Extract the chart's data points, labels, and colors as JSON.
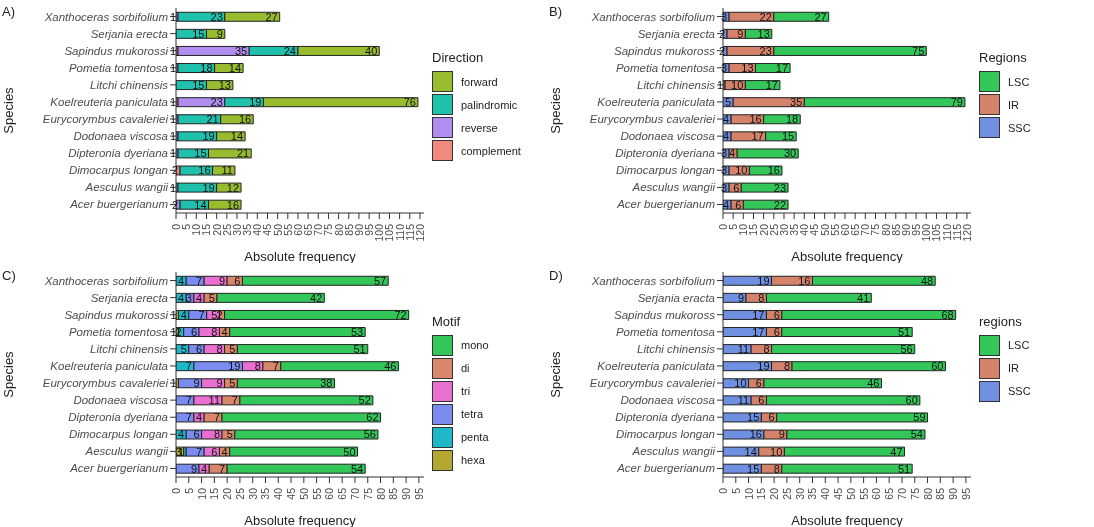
{
  "chart_data": [
    {
      "type": "bar",
      "title": "A)",
      "orientation": "horizontal",
      "stacked": true,
      "data_labels": true,
      "legend": "right",
      "legend_title": "Direction",
      "xlabel": "Absolute frequency",
      "ylabel": "Species",
      "xlim": [
        0,
        122
      ],
      "xticks": [
        0,
        5,
        10,
        15,
        20,
        25,
        30,
        35,
        40,
        45,
        50,
        55,
        60,
        65,
        70,
        75,
        80,
        85,
        90,
        95,
        100,
        105,
        110,
        115,
        120
      ],
      "categories": [
        "Xanthoceras sorbifolium",
        "Serjania erecta",
        "Sapindus mukorossi",
        "Pometia tomentosa",
        "Litchi chinensis",
        "Koelreuteria paniculata",
        "Eurycorymbus cavaleriei",
        "Dodonaea viscosa",
        "Dipteronia dyeriana",
        "Dimocarpus longan",
        "Aesculus wangii",
        "Acer buergerianum"
      ],
      "series": [
        {
          "name": "complement",
          "color": "#f08a80",
          "values": [
            null,
            null,
            1,
            null,
            null,
            1,
            null,
            null,
            null,
            2,
            null,
            null
          ]
        },
        {
          "name": "reverse",
          "color": "#b08ef0",
          "values": [
            1,
            null,
            35,
            1,
            null,
            23,
            1,
            1,
            1,
            null,
            1,
            2
          ]
        },
        {
          "name": "palindromic",
          "color": "#1fc1ad",
          "values": [
            23,
            15,
            24,
            18,
            15,
            19,
            21,
            19,
            15,
            16,
            19,
            14
          ]
        },
        {
          "name": "forward",
          "color": "#97bd2f",
          "values": [
            27,
            9,
            40,
            14,
            13,
            76,
            16,
            14,
            21,
            11,
            12,
            16
          ]
        }
      ]
    },
    {
      "type": "bar",
      "title": "B)",
      "orientation": "horizontal",
      "stacked": true,
      "data_labels": true,
      "legend": "right",
      "legend_title": "Regions",
      "xlabel": "Absolute frequency",
      "ylabel": "Species",
      "xlim": [
        0,
        122
      ],
      "xticks": [
        0,
        5,
        10,
        15,
        20,
        25,
        30,
        35,
        40,
        45,
        50,
        55,
        60,
        65,
        70,
        75,
        80,
        85,
        90,
        95,
        100,
        105,
        110,
        115,
        120
      ],
      "categories": [
        "Xanthoceras sorbifolium",
        "Serjania erecta",
        "Sapindus mukoross",
        "Pometia tomentosa",
        "Litchi chinensis",
        "Koelreuteria paniculata",
        "Eurycorymbus cavaleriei",
        "Dodonaea viscosa",
        "Dipteronia dyeriana",
        "Dimocarpus longan",
        "Aesculus wangii",
        "Acer buergerianum"
      ],
      "series": [
        {
          "name": "SSC",
          "color": "#6f8fe0",
          "values": [
            3,
            2,
            2,
            3,
            1,
            5,
            4,
            4,
            3,
            3,
            3,
            4
          ]
        },
        {
          "name": "IR",
          "color": "#d4826a",
          "values": [
            22,
            9,
            23,
            13,
            10,
            35,
            16,
            17,
            4,
            10,
            6,
            6
          ]
        },
        {
          "name": "LSC",
          "color": "#33c75a",
          "values": [
            27,
            13,
            75,
            17,
            17,
            79,
            18,
            15,
            30,
            16,
            23,
            22
          ]
        }
      ]
    },
    {
      "type": "bar",
      "title": "C)",
      "orientation": "horizontal",
      "stacked": true,
      "data_labels": true,
      "legend": "right",
      "legend_title": "Motif",
      "xlabel": "Absolute frequency",
      "ylabel": "Species",
      "xlim": [
        0,
        97
      ],
      "xticks": [
        0,
        5,
        10,
        15,
        20,
        25,
        30,
        35,
        40,
        45,
        50,
        55,
        60,
        65,
        70,
        75,
        80,
        85,
        90,
        95
      ],
      "categories": [
        "Xanthoceras sorbifolium",
        "Serjania erecta",
        "Sapindus mukorossi",
        "Pometia tomentosa",
        "Litchi chinensis",
        "Koelreuteria paniculata",
        "Eurycorymbus cavaleriei",
        "Dodonaea viscosa",
        "Dipteronia dyeriana",
        "Dimocarpus longan",
        "Aesculus wangii",
        "Acer buergerianum"
      ],
      "series": [
        {
          "name": "hexa",
          "color": "#b5a832",
          "values": [
            null,
            null,
            1,
            1,
            null,
            null,
            1,
            null,
            null,
            null,
            3,
            null
          ]
        },
        {
          "name": "penta",
          "color": "#1fb8c9",
          "values": [
            4,
            4,
            4,
            2,
            5,
            7,
            null,
            null,
            null,
            4,
            1,
            null
          ]
        },
        {
          "name": "tetra",
          "color": "#7b8cf0",
          "values": [
            7,
            3,
            7,
            6,
            6,
            19,
            9,
            7,
            7,
            6,
            7,
            9
          ]
        },
        {
          "name": "tri",
          "color": "#e96fd0",
          "values": [
            9,
            4,
            5,
            8,
            8,
            8,
            9,
            11,
            4,
            8,
            6,
            4
          ]
        },
        {
          "name": "di",
          "color": "#d9876a",
          "values": [
            6,
            5,
            2,
            4,
            5,
            7,
            5,
            7,
            7,
            5,
            4,
            7
          ]
        },
        {
          "name": "mono",
          "color": "#33c75a",
          "values": [
            57,
            42,
            72,
            53,
            51,
            46,
            38,
            52,
            62,
            56,
            50,
            54
          ]
        }
      ]
    },
    {
      "type": "bar",
      "title": "D)",
      "orientation": "horizontal",
      "stacked": true,
      "data_labels": true,
      "legend": "right",
      "legend_title": "regions",
      "xlabel": "Absolute frequency",
      "ylabel": "Species",
      "xlim": [
        0,
        97
      ],
      "xticks": [
        0,
        5,
        10,
        15,
        20,
        25,
        30,
        35,
        40,
        45,
        50,
        55,
        60,
        65,
        70,
        75,
        80,
        85,
        90,
        95
      ],
      "categories": [
        "Xanthoceras sorbifolium",
        "Serjania eracta",
        "Sapindus mukoross",
        "Pometia tomentosa",
        "Litchi chinensis",
        "Koelreuteria paniculata",
        "Eurycorymbus cavaleriei",
        "Dodonaea viscosa",
        "Dipteronia dyeriana",
        "Dimocarpus longan",
        "Aesculus wangii",
        "Acer buergerianum"
      ],
      "series": [
        {
          "name": "SSC",
          "color": "#6f8fe0",
          "values": [
            19,
            9,
            17,
            17,
            11,
            19,
            10,
            11,
            15,
            16,
            14,
            15
          ]
        },
        {
          "name": "IR",
          "color": "#d4826a",
          "values": [
            16,
            8,
            6,
            6,
            8,
            8,
            6,
            6,
            6,
            9,
            10,
            8
          ]
        },
        {
          "name": "LSC",
          "color": "#33c75a",
          "values": [
            48,
            41,
            68,
            51,
            56,
            60,
            46,
            60,
            59,
            54,
            47,
            51
          ]
        }
      ]
    }
  ]
}
